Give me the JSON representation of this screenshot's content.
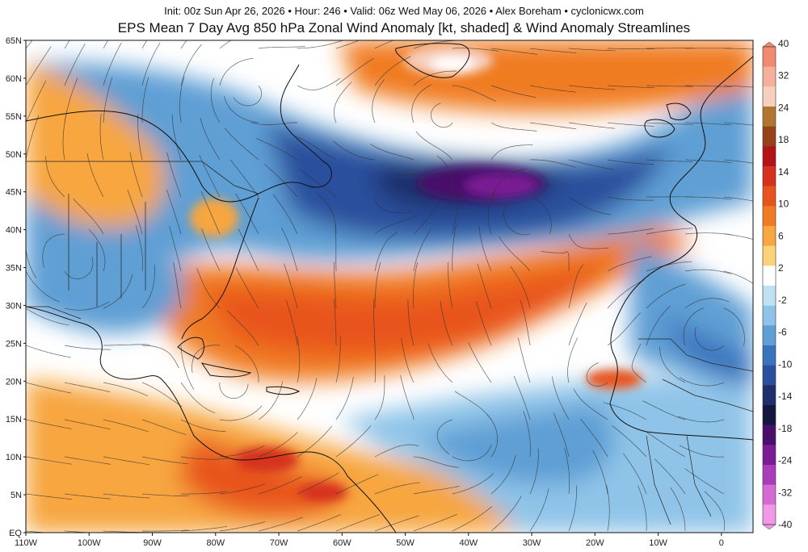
{
  "header": {
    "line1": "Init: 00z Sun Apr 26, 2026 • Hour: 246 • Valid: 06z Wed May 06, 2026 • Alex Boreham • cyclonicwx.com",
    "title": "EPS Mean 7 Day Avg 850 hPa Zonal Wind Anomaly [kt, shaded] & Wind Anomaly Streamlines"
  },
  "axes": {
    "lat_labels": [
      "65N",
      "60N",
      "55N",
      "50N",
      "45N",
      "40N",
      "35N",
      "30N",
      "25N",
      "20N",
      "15N",
      "10N",
      "5N",
      "EQ"
    ],
    "lat_values": [
      65,
      60,
      55,
      50,
      45,
      40,
      35,
      30,
      25,
      20,
      15,
      10,
      5,
      0
    ],
    "lon_labels": [
      "110W",
      "100W",
      "90W",
      "80W",
      "70W",
      "60W",
      "50W",
      "40W",
      "30W",
      "20W",
      "10W",
      "0"
    ],
    "lon_values": [
      -110,
      -100,
      -90,
      -80,
      -70,
      -60,
      -50,
      -40,
      -30,
      -20,
      -10,
      0
    ],
    "lon_range": [
      -110,
      5
    ],
    "lat_range": [
      0,
      65
    ]
  },
  "colorbar": {
    "labels": [
      "40",
      "32",
      "24",
      "18",
      "14",
      "10",
      "6",
      "2",
      "-2",
      "-6",
      "-10",
      "-14",
      "-18",
      "-24",
      "-32",
      "-40"
    ],
    "colors": [
      "#f08a70",
      "#f4b09a",
      "#f7cfbf",
      "#b0762f",
      "#96421a",
      "#b3141a",
      "#d6301e",
      "#e8541f",
      "#f07b24",
      "#f7a640",
      "#fbd27a",
      "#ffffff",
      "#bfe1f2",
      "#8fc4e8",
      "#5f9fd4",
      "#3a73bd",
      "#2a4f9c",
      "#1f2f6b",
      "#14163d",
      "#4a0f6b",
      "#7a1d94",
      "#a93cb8",
      "#d36bd2",
      "#f09ae6"
    ],
    "units": "kt"
  },
  "anomalies": [
    {
      "lon": -38,
      "lat": 46,
      "value": -26
    },
    {
      "lon": -45,
      "lat": 47,
      "value": -18
    },
    {
      "lon": -30,
      "lat": 62,
      "value": 14
    },
    {
      "lon": -50,
      "lat": 26,
      "value": 14
    },
    {
      "lon": -75,
      "lat": 10,
      "value": 14
    },
    {
      "lon": -100,
      "lat": 35,
      "value": -8
    },
    {
      "lon": -35,
      "lat": 12,
      "value": -8
    },
    {
      "lon": -10,
      "lat": 20,
      "value": 4
    }
  ]
}
